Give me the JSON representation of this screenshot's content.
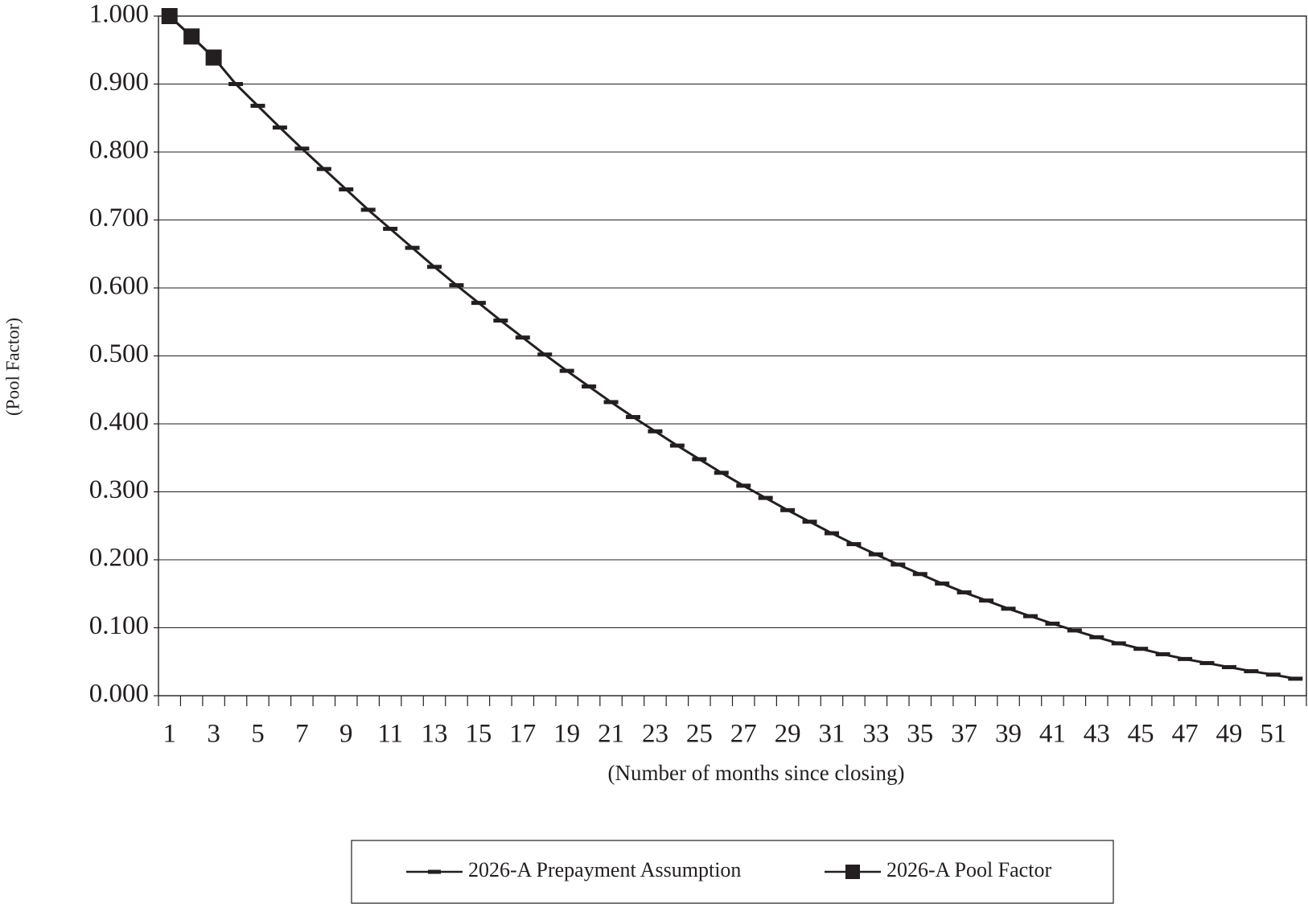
{
  "chart_data": {
    "type": "line",
    "categories": [
      "1",
      null,
      "3",
      null,
      "5",
      null,
      "7",
      null,
      "9",
      null,
      "11",
      null,
      "13",
      null,
      "15",
      null,
      "17",
      null,
      "19",
      null,
      "21",
      null,
      "23",
      null,
      "25",
      null,
      "27",
      null,
      "29",
      null,
      "31",
      null,
      "33",
      null,
      "35",
      null,
      "37",
      null,
      "39",
      null,
      "41",
      null,
      "43",
      null,
      "45",
      null,
      "47",
      null,
      "49",
      null,
      "51",
      null
    ],
    "series": [
      {
        "name": "2026-A Prepayment Assumption",
        "color": "#231f20",
        "marker": "dash",
        "values": [
          1.0,
          0.97,
          0.939,
          0.9,
          0.868,
          0.836,
          0.805,
          0.775,
          0.745,
          0.715,
          0.687,
          0.659,
          0.631,
          0.604,
          0.578,
          0.552,
          0.527,
          0.502,
          0.478,
          0.455,
          0.432,
          0.41,
          0.389,
          0.368,
          0.348,
          0.328,
          0.309,
          0.291,
          0.273,
          0.256,
          0.239,
          0.223,
          0.208,
          0.193,
          0.179,
          0.165,
          0.152,
          0.14,
          0.128,
          0.117,
          0.106,
          0.096,
          0.086,
          0.077,
          0.069,
          0.061,
          0.054,
          0.048,
          0.042,
          0.036,
          0.031,
          0.025
        ]
      },
      {
        "name": "2026-A Pool Factor",
        "color": "#231f20",
        "marker": "square",
        "values": [
          1.0,
          0.97,
          0.939,
          null,
          null,
          null,
          null,
          null,
          null,
          null,
          null,
          null,
          null,
          null,
          null,
          null,
          null,
          null,
          null,
          null,
          null,
          null,
          null,
          null,
          null,
          null,
          null,
          null,
          null,
          null,
          null,
          null,
          null,
          null,
          null,
          null,
          null,
          null,
          null,
          null,
          null,
          null,
          null,
          null,
          null,
          null,
          null,
          null,
          null,
          null,
          null,
          null
        ]
      }
    ],
    "x_label": "(Number of months since closing)",
    "y_label": "(Pool Factor)",
    "ylim": [
      0,
      1
    ],
    "yticks": [
      {
        "value": 0,
        "label": "0.000"
      },
      {
        "value": 0.1,
        "label": "0.100"
      },
      {
        "value": 0.2,
        "label": "0.200"
      },
      {
        "value": 0.3,
        "label": "0.300"
      },
      {
        "value": 0.4,
        "label": "0.400"
      },
      {
        "value": 0.5,
        "label": "0.500"
      },
      {
        "value": 0.6,
        "label": "0.600"
      },
      {
        "value": 0.7,
        "label": "0.700"
      },
      {
        "value": 0.8,
        "label": "0.800"
      },
      {
        "value": 0.9,
        "label": "0.900"
      },
      {
        "value": 1,
        "label": "1.000"
      }
    ],
    "grid": true,
    "legend": "bottom"
  }
}
